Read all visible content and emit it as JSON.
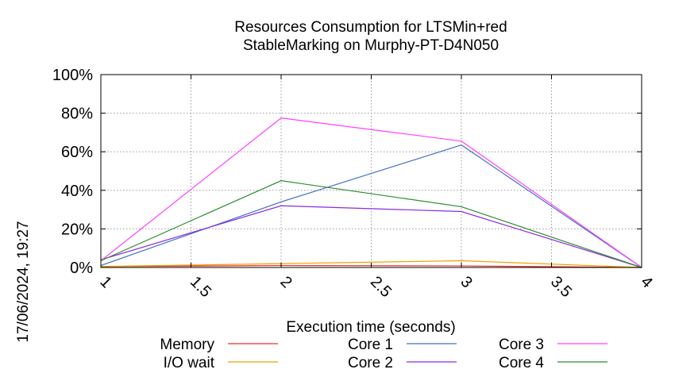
{
  "chart_data": {
    "type": "line",
    "title": [
      "Resources Consumption for LTSMin+red",
      "StableMarking on Murphy-PT-D4N050"
    ],
    "xlabel": "Execution time (seconds)",
    "ylabel": "",
    "side_label": "17/06/2024, 19:27",
    "xlim": [
      1,
      4
    ],
    "ylim": [
      0,
      100
    ],
    "x_ticks": [
      1,
      1.5,
      2,
      2.5,
      3,
      3.5,
      4
    ],
    "x_tick_labels": [
      "1",
      "1.5",
      "2",
      "2.5",
      "3",
      "3.5",
      "4"
    ],
    "y_ticks": [
      0,
      20,
      40,
      60,
      80,
      100
    ],
    "y_tick_labels": [
      "0%",
      "20%",
      "40%",
      "60%",
      "80%",
      "100%"
    ],
    "grid": true,
    "legend_position": "bottom",
    "x": [
      1,
      2,
      3,
      4
    ],
    "series": [
      {
        "name": "Memory",
        "color": "#e8302a",
        "values": [
          0.5,
          1.0,
          0.8,
          0
        ]
      },
      {
        "name": "I/O wait",
        "color": "#f0a000",
        "values": [
          0.5,
          2.0,
          3.5,
          0
        ]
      },
      {
        "name": "Core 1",
        "color": "#4472c4",
        "values": [
          1.0,
          34.0,
          63.5,
          0
        ]
      },
      {
        "name": "Core 2",
        "color": "#8a2be2",
        "values": [
          4.0,
          32.0,
          29.0,
          0
        ]
      },
      {
        "name": "Core 3",
        "color": "#ff40ff",
        "values": [
          3.5,
          77.5,
          65.5,
          0
        ]
      },
      {
        "name": "Core 4",
        "color": "#2e8b2e",
        "values": [
          3.5,
          45.0,
          31.5,
          0
        ]
      }
    ]
  }
}
